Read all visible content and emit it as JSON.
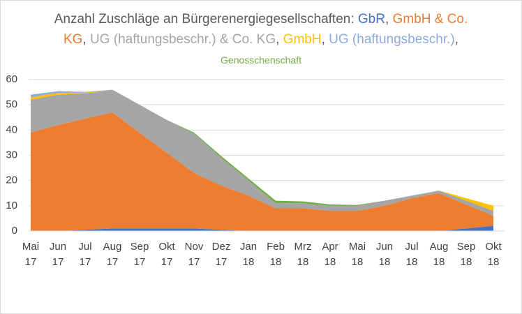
{
  "chart_data": {
    "type": "area",
    "title": "Anzahl Zuschläge an Bürgerenergiegesellschaften:",
    "title_separator": ",",
    "categories": [
      "Mai 17",
      "Jun 17",
      "Jul 17",
      "Aug 17",
      "Sep 17",
      "Okt 17",
      "Nov 17",
      "Dez 17",
      "Jan 18",
      "Feb 18",
      "Mrz 18",
      "Apr 18",
      "Mai 18",
      "Jun 18",
      "Jul 18",
      "Aug 18",
      "Sep 18",
      "Okt 18"
    ],
    "series": [
      {
        "name": "GbR",
        "color": "#4472c4",
        "values": [
          0,
          0,
          0.5,
          1,
          1,
          1,
          1,
          0.5,
          0,
          0,
          0,
          0,
          0,
          0,
          0,
          0,
          1,
          2
        ]
      },
      {
        "name": "GmbH & Co. KG",
        "color": "#ed7d31",
        "values": [
          39,
          42,
          44,
          46,
          38,
          30,
          22,
          17.5,
          14,
          9,
          9,
          8,
          8,
          10,
          13,
          15,
          9.5,
          4
        ]
      },
      {
        "name": "UG (haftungsbeschr.) & Co. KG",
        "color": "#a5a5a5",
        "values": [
          13,
          12,
          10,
          9,
          11,
          13,
          15.5,
          11,
          6,
          2,
          2,
          2,
          2,
          2,
          1,
          1,
          1.5,
          2
        ]
      },
      {
        "name": "GmbH",
        "color": "#ffc000",
        "values": [
          1,
          0.7,
          0.3,
          0,
          0,
          0,
          0,
          0,
          0,
          0,
          0,
          0,
          0,
          0,
          0,
          0,
          1,
          2
        ]
      },
      {
        "name": "UG (haftungsbeschr.)",
        "color": "#8faadc",
        "values": [
          1,
          0.7,
          0.3,
          0,
          0,
          0,
          0,
          0,
          0,
          0,
          0,
          0,
          0,
          0,
          0,
          0,
          0,
          0
        ]
      },
      {
        "name": "Genosschenschaft",
        "color": "#70ad47",
        "values": [
          0,
          0,
          0,
          0,
          0,
          0,
          0.5,
          0.7,
          0.8,
          1,
          0.7,
          0.5,
          0.3,
          0,
          0,
          0,
          0,
          0
        ]
      }
    ],
    "ylim": [
      0,
      60
    ],
    "yticks": [
      0,
      10,
      20,
      30,
      40,
      50,
      60
    ],
    "grid": true
  }
}
